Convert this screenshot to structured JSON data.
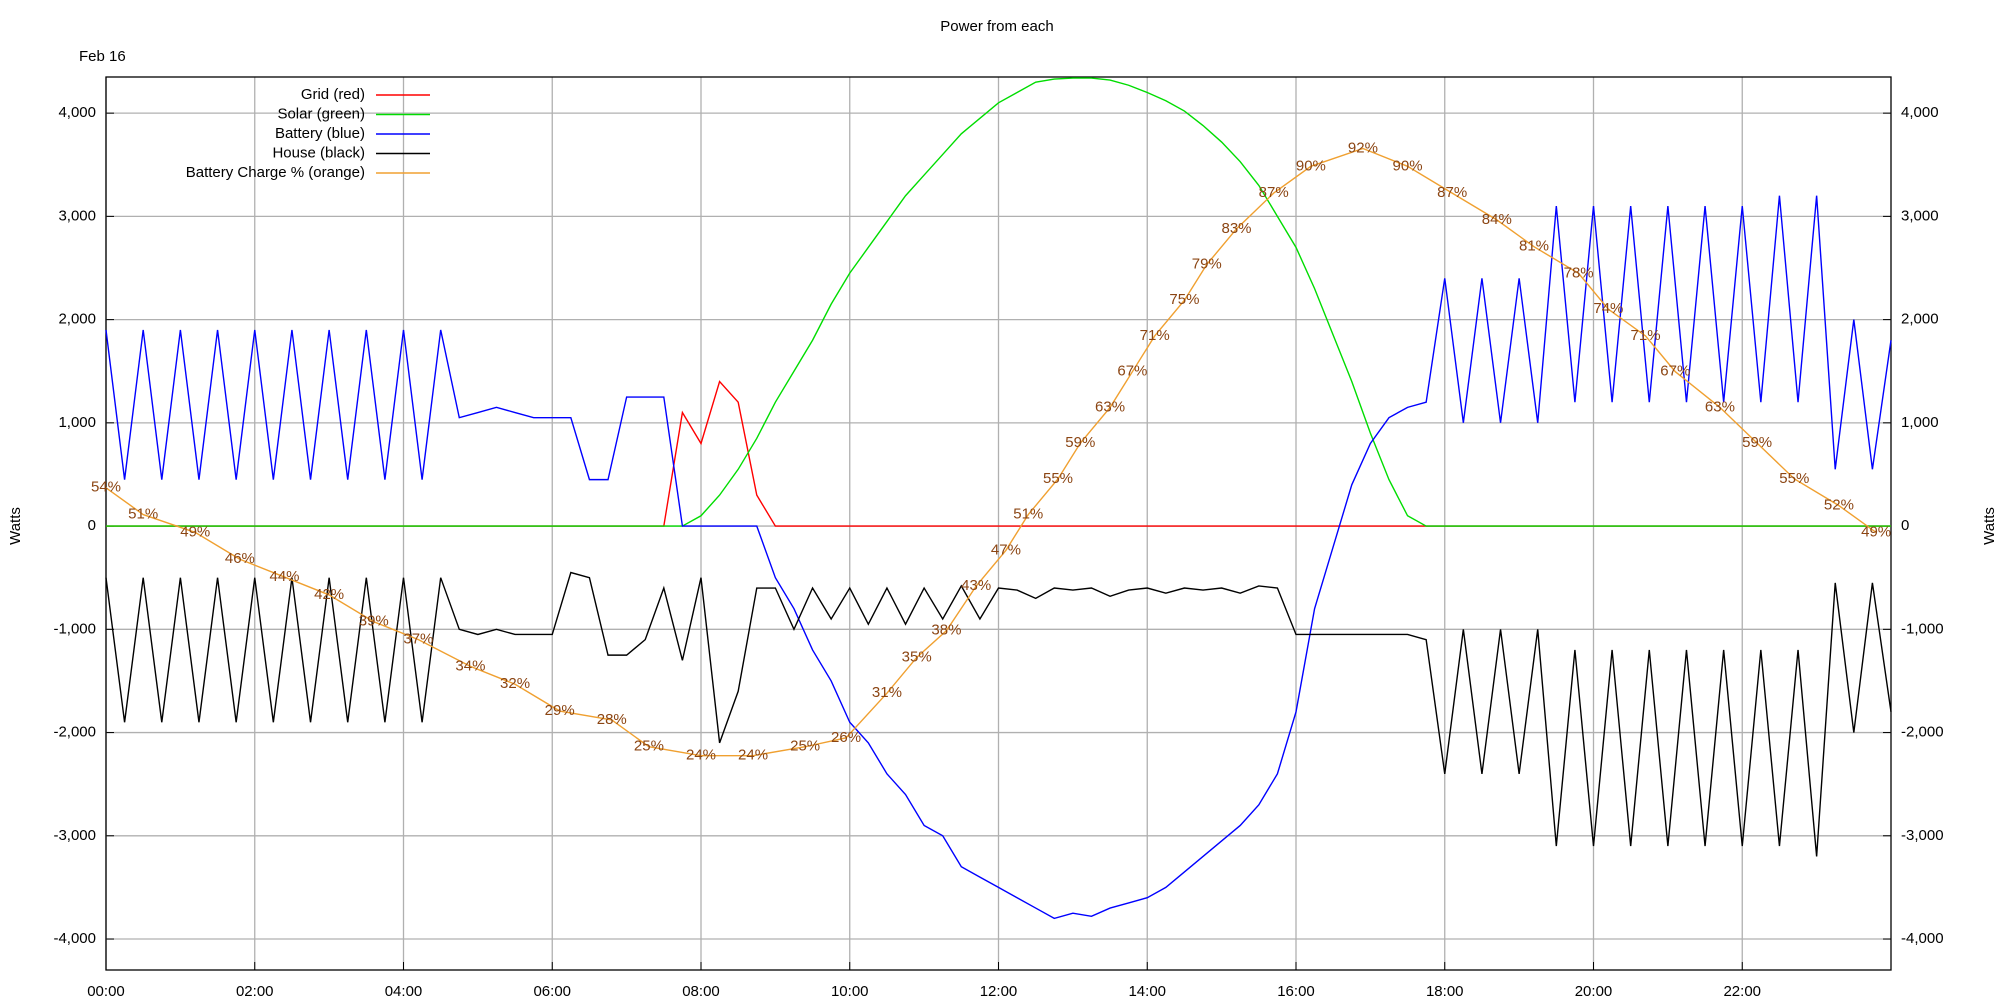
{
  "chart_data": {
    "type": "line",
    "title": "Power from each",
    "subtitle": "Feb 16",
    "y_label": "Watts",
    "legend": "top-left",
    "grid": true,
    "xlim": [
      0,
      24
    ],
    "xticks": [
      {
        "value": 0,
        "label": "00:00"
      },
      {
        "value": 2,
        "label": "02:00"
      },
      {
        "value": 4,
        "label": "04:00"
      },
      {
        "value": 6,
        "label": "06:00"
      },
      {
        "value": 8,
        "label": "08:00"
      },
      {
        "value": 10,
        "label": "10:00"
      },
      {
        "value": 12,
        "label": "12:00"
      },
      {
        "value": 14,
        "label": "14:00"
      },
      {
        "value": 16,
        "label": "16:00"
      },
      {
        "value": 18,
        "label": "18:00"
      },
      {
        "value": 20,
        "label": "20:00"
      },
      {
        "value": 22,
        "label": "22:00"
      }
    ],
    "ylim": [
      -4300,
      4350
    ],
    "yticks": [
      {
        "value": -4000,
        "label": "-4,000"
      },
      {
        "value": -3000,
        "label": "-3,000"
      },
      {
        "value": -2000,
        "label": "-2,000"
      },
      {
        "value": -1000,
        "label": "-1,000"
      },
      0,
      {
        "value": 1000,
        "label": "1,000"
      },
      {
        "value": 2000,
        "label": "2,000"
      },
      {
        "value": 3000,
        "label": "3,000"
      },
      {
        "value": 4000,
        "label": "4,000"
      }
    ],
    "y2lim": [
      0,
      100
    ],
    "x": [
      0,
      0.25,
      0.5,
      0.75,
      1,
      1.25,
      1.5,
      1.75,
      2,
      2.25,
      2.5,
      2.75,
      3,
      3.25,
      3.5,
      3.75,
      4,
      4.25,
      4.5,
      4.75,
      5,
      5.25,
      5.5,
      5.75,
      6,
      6.25,
      6.5,
      6.75,
      7,
      7.25,
      7.5,
      7.75,
      8,
      8.25,
      8.5,
      8.75,
      9,
      9.25,
      9.5,
      9.75,
      10,
      10.25,
      10.5,
      10.75,
      11,
      11.25,
      11.5,
      11.75,
      12,
      12.25,
      12.5,
      12.75,
      13,
      13.25,
      13.5,
      13.75,
      14,
      14.25,
      14.5,
      14.75,
      15,
      15.25,
      15.5,
      15.75,
      16,
      16.25,
      16.5,
      16.75,
      17,
      17.25,
      17.5,
      17.75,
      18,
      18.25,
      18.5,
      18.75,
      19,
      19.25,
      19.5,
      19.75,
      20,
      20.25,
      20.5,
      20.75,
      21,
      21.25,
      21.5,
      21.75,
      22,
      22.25,
      22.5,
      22.75,
      23,
      23.25,
      23.5,
      23.75,
      24
    ],
    "series": [
      {
        "name": "Grid (red)",
        "color": "#ff0000",
        "values": [
          0,
          0,
          0,
          0,
          0,
          0,
          0,
          0,
          0,
          0,
          0,
          0,
          0,
          0,
          0,
          0,
          0,
          0,
          0,
          0,
          0,
          0,
          0,
          0,
          0,
          0,
          0,
          0,
          0,
          0,
          0,
          1100,
          800,
          1400,
          1200,
          300,
          0,
          0,
          0,
          0,
          0,
          0,
          0,
          0,
          0,
          0,
          0,
          0,
          0,
          0,
          0,
          0,
          0,
          0,
          0,
          0,
          0,
          0,
          0,
          0,
          0,
          0,
          0,
          0,
          0,
          0,
          0,
          0,
          0,
          0,
          0,
          0,
          0,
          0,
          0,
          0,
          0,
          0,
          0,
          0,
          0,
          0,
          0,
          0,
          0,
          0,
          0,
          0,
          0,
          0,
          0,
          0,
          0,
          0,
          0,
          0,
          0
        ]
      },
      {
        "name": "Solar (green)",
        "color": "#00dd00",
        "values": [
          0,
          0,
          0,
          0,
          0,
          0,
          0,
          0,
          0,
          0,
          0,
          0,
          0,
          0,
          0,
          0,
          0,
          0,
          0,
          0,
          0,
          0,
          0,
          0,
          0,
          0,
          0,
          0,
          0,
          0,
          0,
          0,
          100,
          300,
          550,
          850,
          1200,
          1500,
          1800,
          2150,
          2450,
          2700,
          2950,
          3200,
          3400,
          3600,
          3800,
          3950,
          4100,
          4200,
          4300,
          4330,
          4340,
          4340,
          4320,
          4270,
          4200,
          4120,
          4020,
          3880,
          3720,
          3530,
          3300,
          3000,
          2700,
          2300,
          1850,
          1400,
          900,
          450,
          100,
          0,
          0,
          0,
          0,
          0,
          0,
          0,
          0,
          0,
          0,
          0,
          0,
          0,
          0,
          0,
          0,
          0,
          0,
          0,
          0,
          0,
          0,
          0,
          0,
          0,
          0
        ]
      },
      {
        "name": "Battery (blue)",
        "color": "#0000ff",
        "values": [
          1900,
          450,
          1900,
          450,
          1900,
          450,
          1900,
          450,
          1900,
          450,
          1900,
          450,
          1900,
          450,
          1900,
          450,
          1900,
          450,
          1900,
          1050,
          1100,
          1150,
          1100,
          1050,
          1050,
          1050,
          450,
          450,
          1250,
          1250,
          1250,
          0,
          0,
          0,
          0,
          0,
          -500,
          -800,
          -1200,
          -1500,
          -1900,
          -2100,
          -2400,
          -2600,
          -2900,
          -3000,
          -3300,
          -3400,
          -3500,
          -3600,
          -3700,
          -3800,
          -3750,
          -3780,
          -3700,
          -3650,
          -3600,
          -3500,
          -3350,
          -3200,
          -3050,
          -2900,
          -2700,
          -2400,
          -1800,
          -800,
          -200,
          400,
          800,
          1050,
          1150,
          1200,
          2400,
          1000,
          2400,
          1000,
          2400,
          1000,
          3100,
          1200,
          3100,
          1200,
          3100,
          1200,
          3100,
          1200,
          3100,
          1200,
          3100,
          1200,
          3200,
          1200,
          3200,
          550,
          2000,
          550,
          1800
        ]
      },
      {
        "name": "House (black)",
        "color": "#000000",
        "values": [
          -500,
          -1900,
          -500,
          -1900,
          -500,
          -1900,
          -500,
          -1900,
          -500,
          -1900,
          -500,
          -1900,
          -500,
          -1900,
          -500,
          -1900,
          -500,
          -1900,
          -500,
          -1000,
          -1050,
          -1000,
          -1050,
          -1050,
          -1050,
          -450,
          -500,
          -1250,
          -1250,
          -1100,
          -600,
          -1300,
          -500,
          -2100,
          -1600,
          -600,
          -600,
          -1000,
          -600,
          -900,
          -600,
          -950,
          -600,
          -950,
          -600,
          -900,
          -580,
          -900,
          -600,
          -620,
          -700,
          -600,
          -620,
          -600,
          -680,
          -620,
          -600,
          -650,
          -600,
          -620,
          -600,
          -650,
          -580,
          -600,
          -1050,
          -1050,
          -1050,
          -1050,
          -1050,
          -1050,
          -1050,
          -1100,
          -2400,
          -1000,
          -2400,
          -1000,
          -2400,
          -1000,
          -3100,
          -1200,
          -3100,
          -1200,
          -3100,
          -1200,
          -3100,
          -1200,
          -3100,
          -1200,
          -3100,
          -1200,
          -3100,
          -1200,
          -3200,
          -550,
          -2000,
          -550,
          -1800
        ]
      },
      {
        "name": "Battery Charge % (orange)",
        "color": "#f0a030",
        "label_color": "#8b4513",
        "axis": "y2",
        "x": [
          0,
          0.5,
          1.2,
          1.8,
          2.4,
          3.0,
          3.6,
          4.2,
          4.9,
          5.5,
          6.1,
          6.8,
          7.3,
          8.0,
          8.7,
          9.4,
          9.95,
          10.5,
          10.9,
          11.3,
          11.7,
          12.1,
          12.4,
          12.8,
          13.1,
          13.5,
          13.8,
          14.1,
          14.5,
          14.8,
          15.2,
          15.7,
          16.2,
          16.9,
          17.5,
          18.1,
          18.7,
          19.2,
          19.8,
          20.2,
          20.7,
          21.1,
          21.7,
          22.2,
          22.7,
          23.3,
          23.8
        ],
        "values": [
          54,
          51,
          49,
          46,
          44,
          42,
          39,
          37,
          34,
          32,
          29,
          28,
          25,
          24,
          24,
          25,
          26,
          31,
          35,
          38,
          43,
          47,
          51,
          55,
          59,
          63,
          67,
          71,
          75,
          79,
          83,
          87,
          90,
          92,
          90,
          87,
          84,
          81,
          78,
          74,
          71,
          67,
          63,
          59,
          55,
          52,
          49
        ],
        "value_labels": [
          "54%",
          "51%",
          "49%",
          "46%",
          "44%",
          "42%",
          "39%",
          "37%",
          "34%",
          "32%",
          "29%",
          "28%",
          "25%",
          "24%",
          "24%",
          "25%",
          "26%",
          "31%",
          "35%",
          "38%",
          "43%",
          "47%",
          "51%",
          "55%",
          "59%",
          "63%",
          "67%",
          "71%",
          "75%",
          "79%",
          "83%",
          "87%",
          "90%",
          "92%",
          "90%",
          "87%",
          "84%",
          "81%",
          "78%",
          "74%",
          "71%",
          "67%",
          "63%",
          "59%",
          "55%",
          "52%",
          "49%"
        ]
      }
    ]
  }
}
